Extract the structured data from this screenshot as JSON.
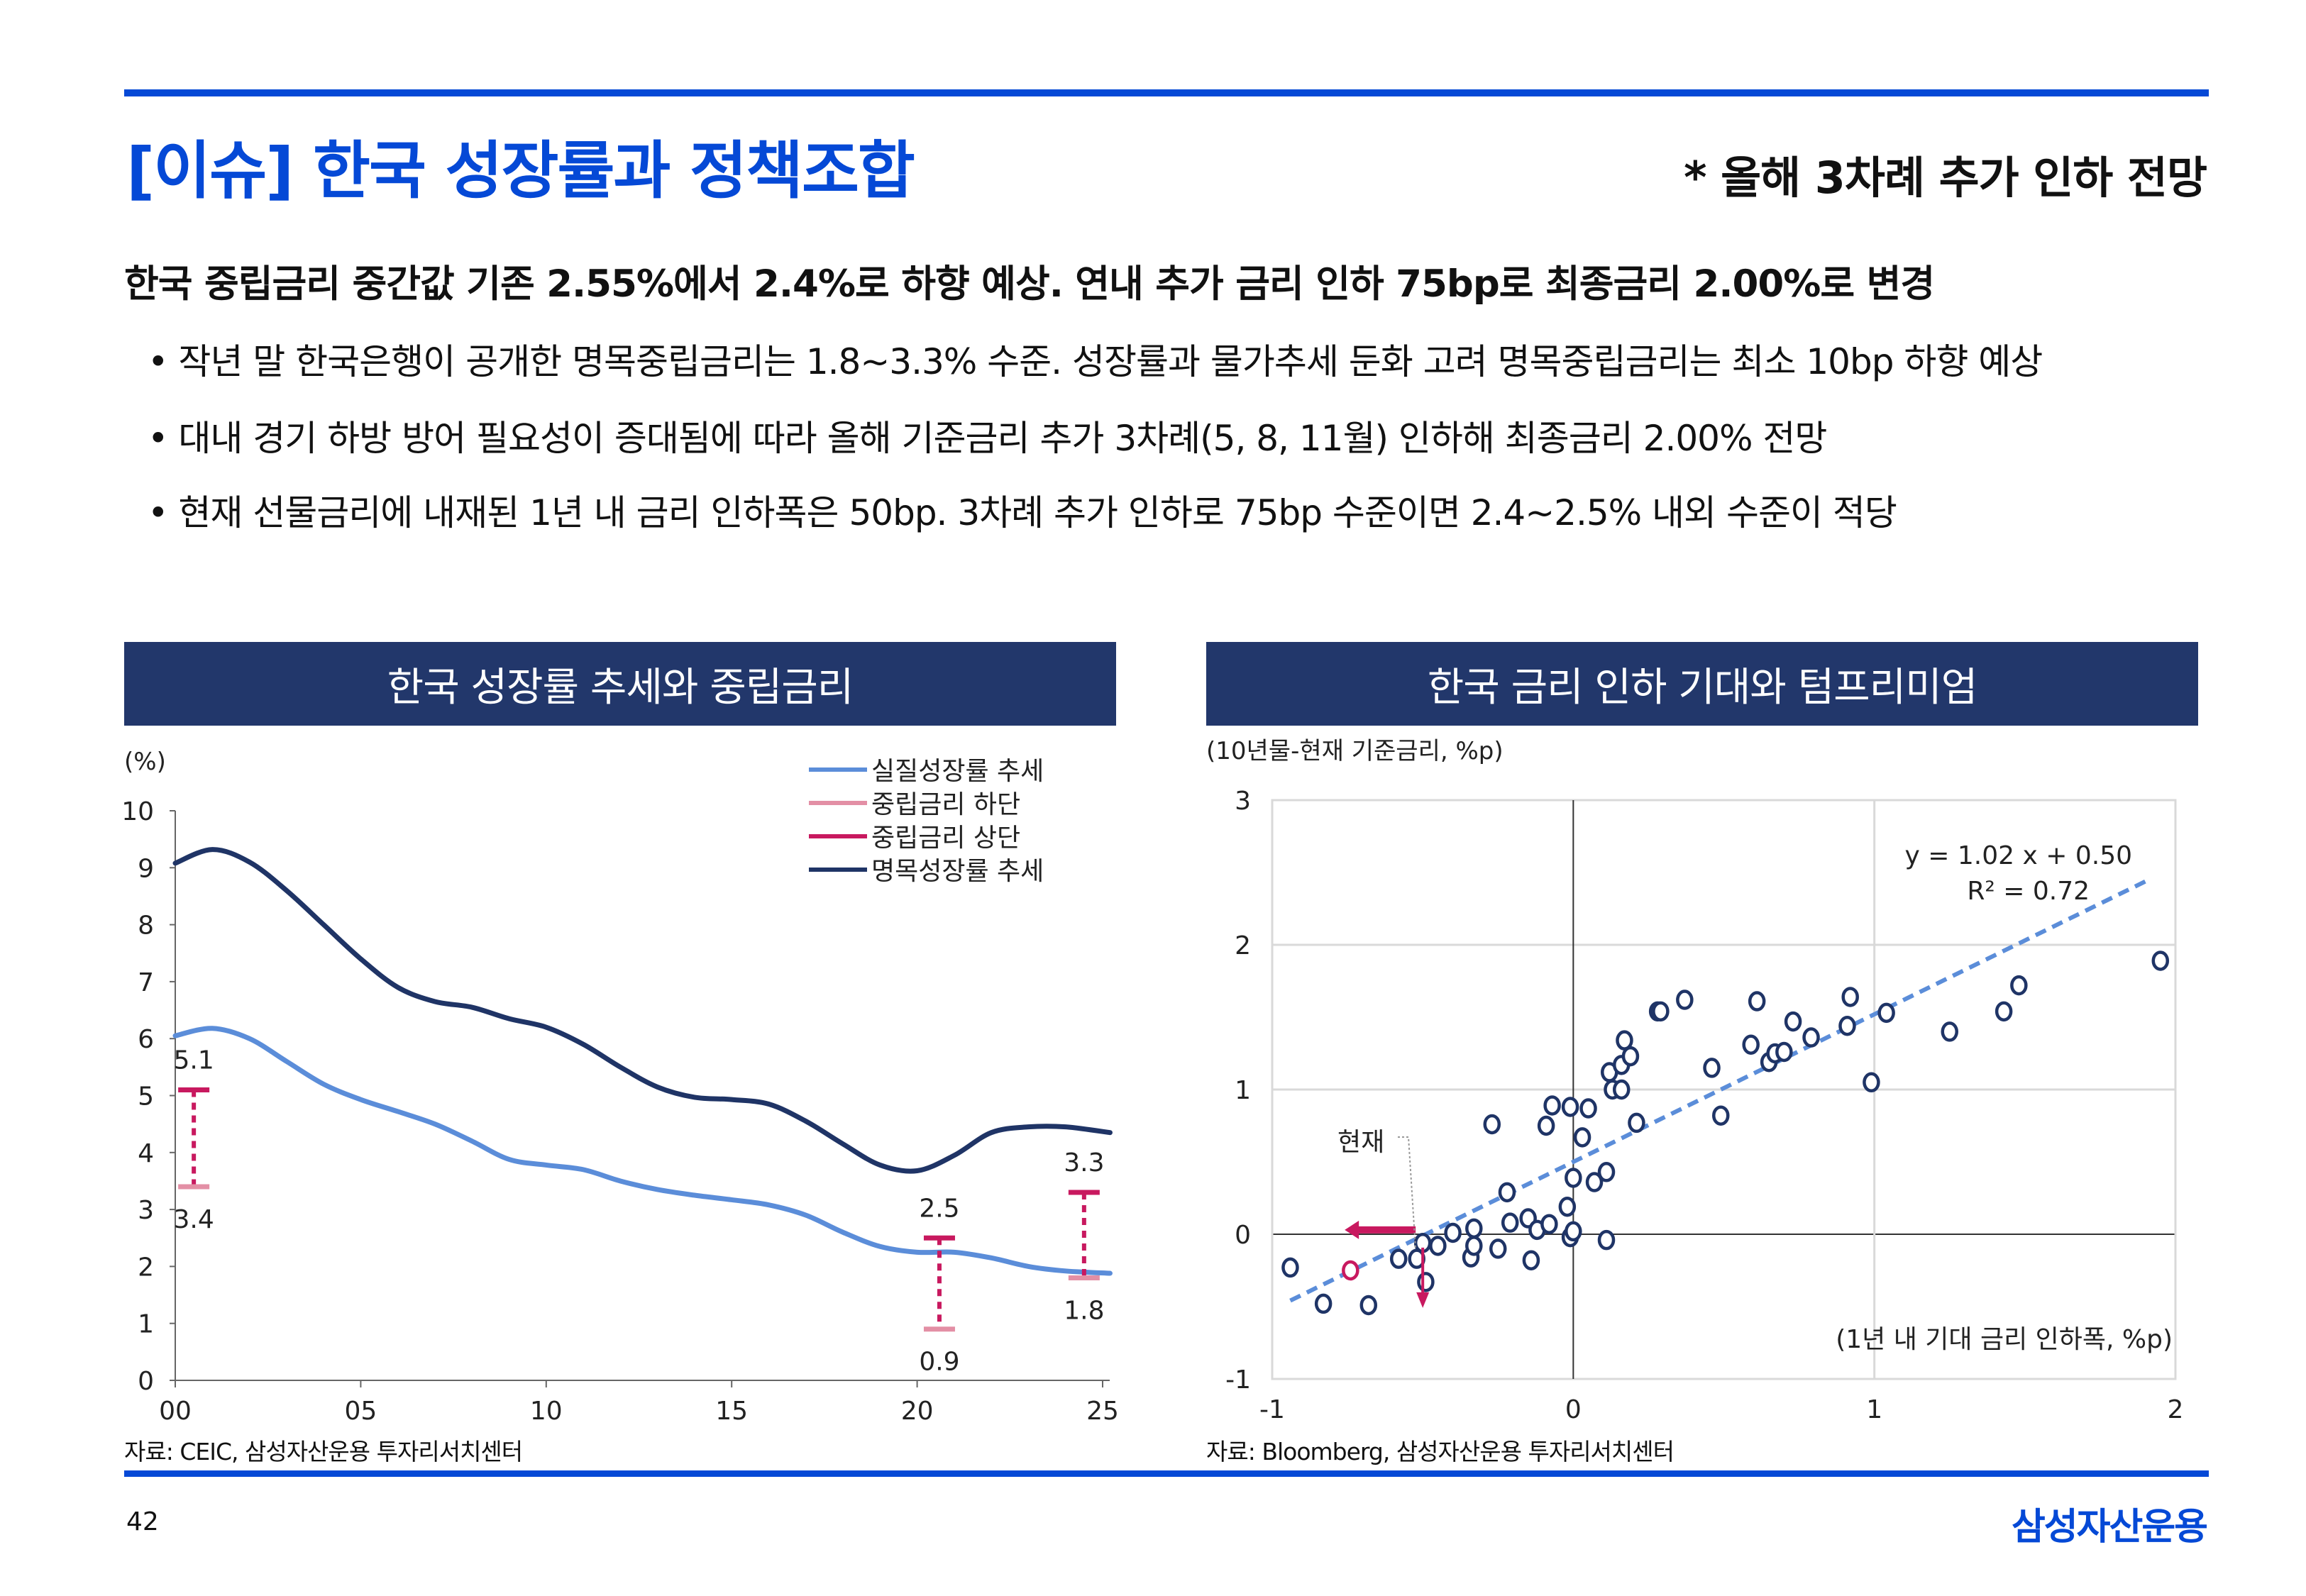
{
  "header": {
    "title": "[이슈] 한국 성장률과 정책조합",
    "subtitle": "* 올해 3차례 추가 인하 전망"
  },
  "summary": {
    "headline": "한국 중립금리 중간값 기존 2.55%에서 2.4%로 하향 예상. 연내 추가 금리 인하 75bp로 최종금리 2.00%로 변경",
    "bullets": [
      "• 작년 말 한국은행이 공개한 명목중립금리는 1.8~3.3% 수준. 성장률과 물가추세 둔화 고려 명목중립금리는 최소 10bp 하향 예상",
      "• 대내 경기 하방 방어 필요성이 증대됨에 따라 올해 기준금리 추가 3차례(5, 8, 11월) 인하해 최종금리 2.00% 전망",
      "• 현재 선물금리에 내재된 1년 내 금리 인하폭은 50bp. 3차례 추가 인하로 75bp 수준이면 2.4~2.5% 내외 수준이 적당"
    ]
  },
  "colors": {
    "brand": "#0549d6",
    "header_bg": "#22376b",
    "real_growth": "#5b8dd9",
    "neutral_low": "#e38fa5",
    "neutral_high": "#c8195f",
    "nominal_growth": "#1f3466",
    "scatter_point": "#1f3466",
    "trendline": "#5b8dd9",
    "current_point": "#c8195f"
  },
  "chart_data": [
    {
      "type": "line",
      "title": "한국 성장률 추세와 중립금리",
      "ylabel": "(%)",
      "xlabel": "",
      "ylim": [
        0,
        10
      ],
      "yticks": [
        "0",
        "1",
        "2",
        "3",
        "4",
        "5",
        "6",
        "7",
        "8",
        "9",
        "10"
      ],
      "xlim": [
        2000,
        2025.3
      ],
      "xticks": [
        {
          "x": 2000,
          "label": "00"
        },
        {
          "x": 2005,
          "label": "05"
        },
        {
          "x": 2010,
          "label": "10"
        },
        {
          "x": 2015,
          "label": "15"
        },
        {
          "x": 2020,
          "label": "20"
        },
        {
          "x": 2025,
          "label": "25"
        }
      ],
      "legend_position": "top-right",
      "legend": [
        "실질성장률 추세",
        "중립금리 하단",
        "중립금리 상단",
        "명목성장률 추세"
      ],
      "series": [
        {
          "name": "실질성장률 추세",
          "x": [
            2000,
            2001,
            2002,
            2003,
            2004,
            2005,
            2006,
            2007,
            2008,
            2009,
            2010,
            2011,
            2012,
            2013,
            2014,
            2015,
            2016,
            2017,
            2018,
            2019,
            2020,
            2021,
            2022,
            2023,
            2024,
            2025.2
          ],
          "values": [
            6.05,
            6.18,
            6.0,
            5.6,
            5.2,
            4.93,
            4.72,
            4.5,
            4.2,
            3.88,
            3.78,
            3.7,
            3.5,
            3.35,
            3.25,
            3.17,
            3.08,
            2.9,
            2.6,
            2.35,
            2.25,
            2.25,
            2.15,
            2.0,
            1.92,
            1.88
          ]
        },
        {
          "name": "명목성장률 추세",
          "x": [
            2000,
            2001,
            2002,
            2003,
            2004,
            2005,
            2006,
            2007,
            2008,
            2009,
            2010,
            2011,
            2012,
            2013,
            2014,
            2015,
            2016,
            2017,
            2018,
            2019,
            2020,
            2021,
            2022,
            2023,
            2024,
            2025.2
          ],
          "values": [
            9.08,
            9.32,
            9.1,
            8.6,
            8.0,
            7.4,
            6.9,
            6.65,
            6.55,
            6.35,
            6.2,
            5.9,
            5.5,
            5.15,
            4.97,
            4.93,
            4.85,
            4.55,
            4.15,
            3.78,
            3.68,
            3.95,
            4.35,
            4.45,
            4.45,
            4.35
          ]
        }
      ],
      "ranges": [
        {
          "x": 2000.5,
          "low": 3.4,
          "high": 5.1,
          "low_label": "3.4",
          "high_label": "5.1"
        },
        {
          "x": 2020.6,
          "low": 0.9,
          "high": 2.5,
          "low_label": "0.9",
          "high_label": "2.5"
        },
        {
          "x": 2024.5,
          "low": 1.8,
          "high": 3.3,
          "low_label": "1.8",
          "high_label": "3.3"
        }
      ],
      "source": "자료: CEIC, 삼성자산운용 투자리서치센터"
    },
    {
      "type": "scatter",
      "title": "한국 금리 인하 기대와 텀프리미엄",
      "ylabel": "(10년물-현재 기준금리, %p)",
      "xlabel": "(1년 내 기대 금리 인하폭, %p)",
      "xlim": [
        -1,
        2
      ],
      "ylim": [
        -1,
        3
      ],
      "xticks": [
        "-1",
        "0",
        "1",
        "2"
      ],
      "yticks": [
        "-1",
        "0",
        "1",
        "2",
        "3"
      ],
      "grid": true,
      "trendline": {
        "slope": 1.02,
        "intercept": 0.5,
        "x_range": [
          -0.94,
          1.92
        ],
        "equation": "y = 1.02 x + 0.50",
        "r2": "R² = 0.72"
      },
      "current": {
        "x": -0.74,
        "y": -0.25,
        "label": "현재",
        "arrow_origin": {
          "x": -0.5,
          "y": 0.03
        }
      },
      "points": [
        [
          -0.94,
          -0.23
        ],
        [
          -0.83,
          -0.48
        ],
        [
          -0.68,
          -0.49
        ],
        [
          -0.58,
          -0.17
        ],
        [
          -0.52,
          -0.17
        ],
        [
          -0.5,
          -0.06
        ],
        [
          -0.49,
          -0.33
        ],
        [
          -0.45,
          -0.08
        ],
        [
          -0.4,
          0.01
        ],
        [
          -0.34,
          -0.16
        ],
        [
          -0.33,
          0.04
        ],
        [
          -0.33,
          -0.08
        ],
        [
          -0.27,
          0.76
        ],
        [
          -0.25,
          -0.1
        ],
        [
          -0.22,
          0.29
        ],
        [
          -0.21,
          0.08
        ],
        [
          -0.15,
          0.11
        ],
        [
          -0.14,
          -0.18
        ],
        [
          -0.12,
          0.03
        ],
        [
          -0.08,
          0.07
        ],
        [
          -0.09,
          0.75
        ],
        [
          -0.07,
          0.89
        ],
        [
          -0.02,
          0.19
        ],
        [
          -0.01,
          0.88
        ],
        [
          -0.01,
          -0.02
        ],
        [
          0.0,
          0.02
        ],
        [
          0.0,
          0.39
        ],
        [
          0.03,
          0.67
        ],
        [
          0.05,
          0.87
        ],
        [
          0.07,
          0.36
        ],
        [
          0.11,
          0.43
        ],
        [
          0.11,
          -0.04
        ],
        [
          0.12,
          1.12
        ],
        [
          0.13,
          1.0
        ],
        [
          0.16,
          1.0
        ],
        [
          0.16,
          1.17
        ],
        [
          0.17,
          1.34
        ],
        [
          0.19,
          1.23
        ],
        [
          0.21,
          0.77
        ],
        [
          0.28,
          1.54
        ],
        [
          0.29,
          1.54
        ],
        [
          0.37,
          1.62
        ],
        [
          0.46,
          1.15
        ],
        [
          0.49,
          0.82
        ],
        [
          0.59,
          1.31
        ],
        [
          0.61,
          1.61
        ],
        [
          0.65,
          1.19
        ],
        [
          0.67,
          1.25
        ],
        [
          0.7,
          1.26
        ],
        [
          0.73,
          1.47
        ],
        [
          0.79,
          1.36
        ],
        [
          0.91,
          1.44
        ],
        [
          0.92,
          1.64
        ],
        [
          0.99,
          1.05
        ],
        [
          1.04,
          1.53
        ],
        [
          1.25,
          1.4
        ],
        [
          1.43,
          1.54
        ],
        [
          1.48,
          1.72
        ],
        [
          1.95,
          1.89
        ]
      ],
      "source": "자료: Bloomberg, 삼성자산운용 투자리서치센터"
    }
  ],
  "footer": {
    "page_number": "42",
    "logo_text": "삼성자산운용"
  }
}
